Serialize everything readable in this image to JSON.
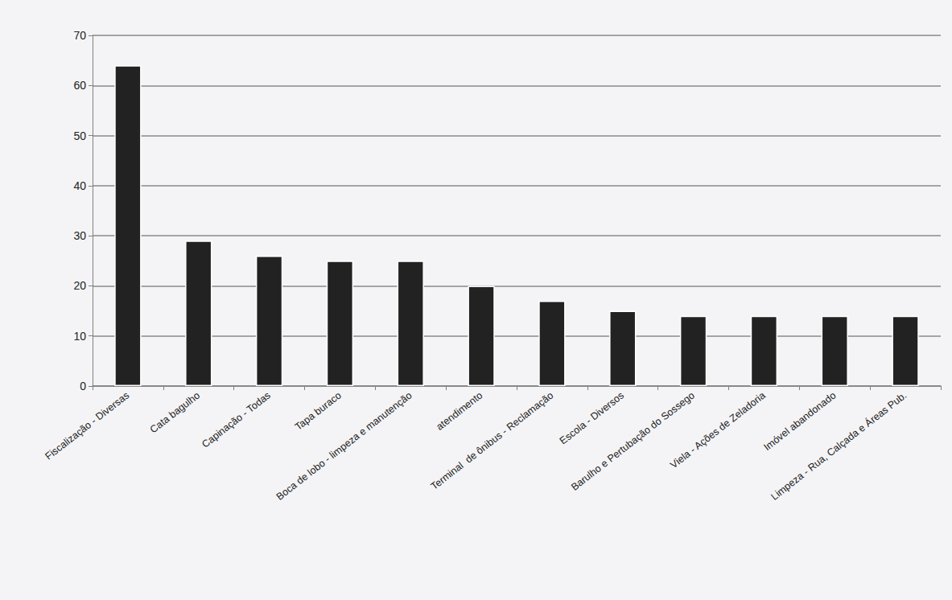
{
  "chart_data": {
    "type": "bar",
    "categories": [
      "Fiscalização - Diversas",
      "Cata bagulho",
      "Capinação - Todas",
      "Tapa buraco",
      "Boca de lobo - limpeza e manutenção",
      "atendimento",
      "Terminal  de ônibus - Reclamação",
      "Escola - Diversos",
      "Barulho e Pertubação do Sossego",
      "Viela - Ações de Zeladoria",
      "Imóvel abandonado",
      "Limpeza - Rua, Calçada e Áreas Pub."
    ],
    "values": [
      64,
      29,
      26,
      25,
      25,
      20,
      17,
      15,
      14,
      14,
      14,
      14
    ],
    "color": "#222222",
    "ylim": [
      0,
      70
    ],
    "yticks": [
      0,
      10,
      20,
      30,
      40,
      50,
      60,
      70
    ],
    "grid": true
  }
}
